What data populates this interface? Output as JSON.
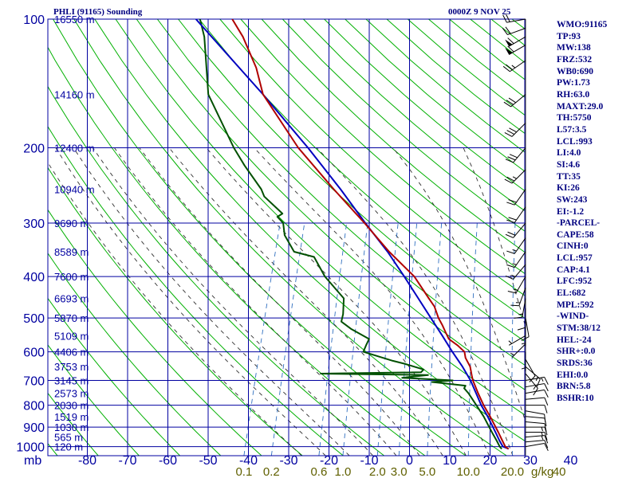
{
  "header": {
    "station_title": "PHLI (91165) Sounding",
    "time_label": "0000Z  9 NOV 25"
  },
  "indices": [
    "WMO:91165",
    "TP:93",
    "MW:138",
    "FRZ:532",
    "WB0:690",
    "PW:1.73",
    "RH:63.0",
    "MAXT:29.0",
    "TH:5750",
    "L57:3.5",
    "LCL:993",
    "LI:4.0",
    "SI:4.6",
    "TT:35",
    "KI:26",
    "SW:243",
    "EI:-1.2",
    "-PARCEL-",
    "CAPE:58",
    "CINH:0",
    "LCL:957",
    "CAP:4.1",
    "LFC:952",
    "EL:682",
    "MPL:592",
    "-WIND-",
    "STM:38/12",
    "HEL:-24",
    "SHR+:0.0",
    "SRDS:36",
    "EHI:0.0",
    "BRN:5.8",
    "BSHR:10"
  ],
  "colors": {
    "grid": "#0000a0",
    "dry_adiabat": "#00b000",
    "moist_adiabat": "#303030",
    "mixing_ratio": "#3070c0",
    "temperature": "#b00000",
    "dewpoint": "#005000",
    "parcel": "#0000c0",
    "axis_text": "#0000a0",
    "mixing_ratio_text": "#606000"
  },
  "chart_data": {
    "type": "skew-t log-p sounding",
    "pressure_label": "mb",
    "pressure_levels": [
      100,
      200,
      300,
      400,
      500,
      600,
      700,
      800,
      900,
      1000
    ],
    "temperature_ticks": [
      -80,
      -70,
      -60,
      -50,
      -40,
      -30,
      -20,
      -10,
      0,
      10,
      20,
      30,
      40
    ],
    "temperature_tick_labels": [
      "-80",
      "-70",
      "-60",
      "-50",
      "-40",
      "-30",
      "-20",
      "-10",
      "0",
      "10",
      "20",
      "30",
      "40"
    ],
    "mixing_ratio_label": "g/kg",
    "mixing_ratio_values": [
      0.1,
      0.2,
      0.6,
      1.0,
      2.0,
      3.0,
      5.0,
      10.0,
      20.0,
      40.0
    ],
    "mixing_ratio_labels": [
      "0.1",
      "0.2",
      "0.6",
      "1.0",
      "2.0",
      "3.0",
      "5.0",
      "10.0",
      "20.0",
      "40"
    ],
    "height_labels": [
      {
        "p": 100,
        "label": "16550 m"
      },
      {
        "p": 150,
        "label": "14160 m"
      },
      {
        "p": 200,
        "label": "12400 m"
      },
      {
        "p": 250,
        "label": "10940 m"
      },
      {
        "p": 300,
        "label": "9690 m"
      },
      {
        "p": 350,
        "label": "8589 m"
      },
      {
        "p": 400,
        "label": "7600 m"
      },
      {
        "p": 450,
        "label": "6693 m"
      },
      {
        "p": 500,
        "label": "5870 m"
      },
      {
        "p": 550,
        "label": "5109 m"
      },
      {
        "p": 600,
        "label": "4406 m"
      },
      {
        "p": 650,
        "label": "3753 m"
      },
      {
        "p": 700,
        "label": "3145 m"
      },
      {
        "p": 750,
        "label": "2573 m"
      },
      {
        "p": 800,
        "label": "2030 m"
      },
      {
        "p": 850,
        "label": "1519 m"
      },
      {
        "p": 900,
        "label": "1030 m"
      },
      {
        "p": 950,
        "label": "565 m"
      },
      {
        "p": 1000,
        "label": "120 m"
      }
    ],
    "temperature_profile": [
      [
        1012,
        24.0
      ],
      [
        1000,
        23.0
      ],
      [
        970,
        21.8
      ],
      [
        925,
        20.0
      ],
      [
        850,
        16.6
      ],
      [
        800,
        14.0
      ],
      [
        750,
        11.6
      ],
      [
        700,
        9.2
      ],
      [
        685,
        8.6
      ],
      [
        650,
        7.3
      ],
      [
        620,
        5.4
      ],
      [
        600,
        4.6
      ],
      [
        580,
        2.4
      ],
      [
        560,
        -0.4
      ],
      [
        540,
        -1.8
      ],
      [
        520,
        -3.2
      ],
      [
        500,
        -4.8
      ],
      [
        470,
        -6.8
      ],
      [
        450,
        -8.9
      ],
      [
        400,
        -14.4
      ],
      [
        350,
        -22.8
      ],
      [
        300,
        -31.4
      ],
      [
        250,
        -42.0
      ],
      [
        200,
        -54.4
      ],
      [
        150,
        -67.8
      ],
      [
        130,
        -71.8
      ],
      [
        110,
        -77.8
      ],
      [
        100,
        -82.0
      ]
    ],
    "dewpoint_profile": [
      [
        1012,
        22.3
      ],
      [
        1000,
        21.6
      ],
      [
        970,
        20.4
      ],
      [
        925,
        18.4
      ],
      [
        850,
        15.0
      ],
      [
        800,
        12.2
      ],
      [
        750,
        9.2
      ],
      [
        730,
        7.7
      ],
      [
        720,
        7.8
      ],
      [
        706,
        -0.8
      ],
      [
        700,
        4.2
      ],
      [
        690,
        -8.6
      ],
      [
        680,
        -2.4
      ],
      [
        675,
        -29.2
      ],
      [
        670,
        -4.4
      ],
      [
        660,
        -4.0
      ],
      [
        640,
        -9.2
      ],
      [
        630,
        -12.4
      ],
      [
        600,
        -20.5
      ],
      [
        580,
        -20.4
      ],
      [
        560,
        -20.2
      ],
      [
        530,
        -25.6
      ],
      [
        510,
        -28.6
      ],
      [
        490,
        -28.8
      ],
      [
        450,
        -30.0
      ],
      [
        400,
        -36.6
      ],
      [
        360,
        -41.0
      ],
      [
        350,
        -46.4
      ],
      [
        320,
        -50.2
      ],
      [
        300,
        -51.6
      ],
      [
        290,
        -53.6
      ],
      [
        285,
        -52.6
      ],
      [
        260,
        -58.6
      ],
      [
        250,
        -60.0
      ],
      [
        220,
        -66.2
      ],
      [
        200,
        -70.4
      ],
      [
        150,
        -81.4
      ],
      [
        110,
        -87.4
      ],
      [
        100,
        -90.0
      ]
    ],
    "parcel_profile": [
      [
        1012,
        24.0
      ],
      [
        1000,
        22.4
      ],
      [
        970,
        21.1
      ],
      [
        925,
        19.3
      ],
      [
        850,
        16.0
      ],
      [
        800,
        13.4
      ],
      [
        750,
        11.1
      ],
      [
        700,
        8.6
      ],
      [
        650,
        5.4
      ],
      [
        600,
        1.6
      ],
      [
        550,
        -2.3
      ],
      [
        500,
        -6.7
      ],
      [
        450,
        -11.5
      ],
      [
        400,
        -16.9
      ],
      [
        350,
        -23.2
      ],
      [
        300,
        -31.2
      ],
      [
        250,
        -40.3
      ],
      [
        200,
        -52.0
      ],
      [
        150,
        -67.8
      ],
      [
        100,
        -91.0
      ]
    ],
    "wind_barbs": [
      {
        "p": 1000,
        "dir": 80,
        "spd": 10
      },
      {
        "p": 975,
        "dir": 85,
        "spd": 10
      },
      {
        "p": 950,
        "dir": 85,
        "spd": 15
      },
      {
        "p": 925,
        "dir": 90,
        "spd": 15
      },
      {
        "p": 900,
        "dir": 90,
        "spd": 15
      },
      {
        "p": 875,
        "dir": 95,
        "spd": 10
      },
      {
        "p": 850,
        "dir": 95,
        "spd": 10
      },
      {
        "p": 825,
        "dir": 100,
        "spd": 10
      },
      {
        "p": 800,
        "dir": 90,
        "spd": 10
      },
      {
        "p": 775,
        "dir": 85,
        "spd": 10
      },
      {
        "p": 750,
        "dir": 80,
        "spd": 10
      },
      {
        "p": 725,
        "dir": 80,
        "spd": 10
      },
      {
        "p": 700,
        "dir": 80,
        "spd": 15
      },
      {
        "p": 675,
        "dir": 140,
        "spd": 15
      },
      {
        "p": 650,
        "dir": 130,
        "spd": 15
      },
      {
        "p": 625,
        "dir": 150,
        "spd": 10
      },
      {
        "p": 600,
        "dir": 180,
        "spd": 5
      },
      {
        "p": 575,
        "dir": 225,
        "spd": 5
      },
      {
        "p": 550,
        "dir": 240,
        "spd": 5
      },
      {
        "p": 525,
        "dir": 180,
        "spd": 5
      },
      {
        "p": 500,
        "dir": 170,
        "spd": 10
      },
      {
        "p": 475,
        "dir": 180,
        "spd": 10
      },
      {
        "p": 450,
        "dir": 190,
        "spd": 15
      },
      {
        "p": 425,
        "dir": 200,
        "spd": 15
      },
      {
        "p": 400,
        "dir": 210,
        "spd": 15
      },
      {
        "p": 375,
        "dir": 220,
        "spd": 15
      },
      {
        "p": 350,
        "dir": 215,
        "spd": 15
      },
      {
        "p": 325,
        "dir": 215,
        "spd": 15
      },
      {
        "p": 300,
        "dir": 220,
        "spd": 20
      },
      {
        "p": 275,
        "dir": 215,
        "spd": 20
      },
      {
        "p": 250,
        "dir": 215,
        "spd": 20
      },
      {
        "p": 225,
        "dir": 225,
        "spd": 25
      },
      {
        "p": 200,
        "dir": 220,
        "spd": 30
      },
      {
        "p": 175,
        "dir": 225,
        "spd": 30
      },
      {
        "p": 150,
        "dir": 230,
        "spd": 30
      },
      {
        "p": 125,
        "dir": 235,
        "spd": 25
      },
      {
        "p": 115,
        "dir": 240,
        "spd": 60
      },
      {
        "p": 110,
        "dir": 240,
        "spd": 60
      },
      {
        "p": 105,
        "dir": 250,
        "spd": 20
      },
      {
        "p": 100,
        "dir": 260,
        "spd": 20
      }
    ]
  }
}
